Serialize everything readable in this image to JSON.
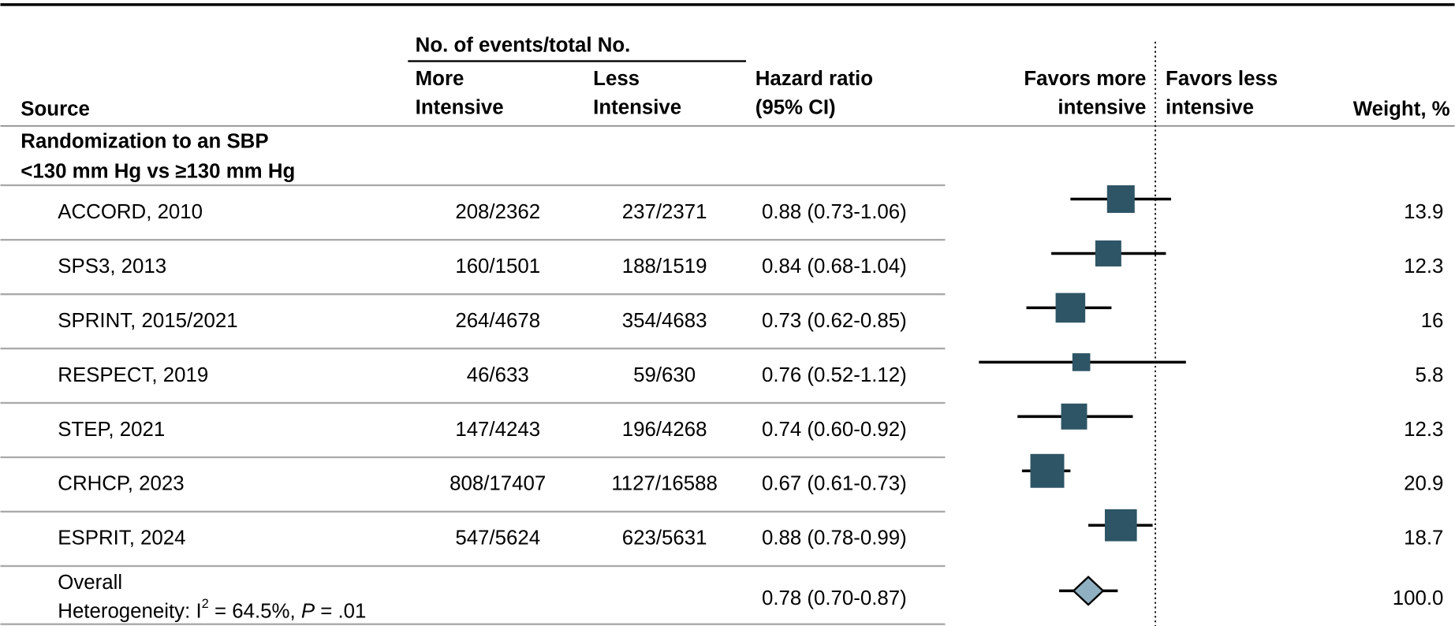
{
  "chart_data": {
    "type": "forest",
    "xscale": "log",
    "xlim": [
      0.5,
      1.2
    ],
    "reference": 1,
    "box_color": "#2e5566",
    "diamond_color": "#8fb0c0",
    "columns": {
      "source": "Source",
      "events_header": "No. of events/total No.",
      "more": [
        "More",
        "Intensive"
      ],
      "less": [
        "Less",
        "Intensive"
      ],
      "hr": [
        "Hazard ratio",
        "(95% CI)"
      ],
      "favors_more": [
        "Favors more",
        "intensive"
      ],
      "favors_less": [
        "Favors less",
        "intensive"
      ],
      "weight": "Weight, %"
    },
    "group": [
      "Randomization to an SBP",
      "<130 mm Hg vs ≥130 mm Hg"
    ],
    "studies": [
      {
        "name": "ACCORD, 2010",
        "more": "208/2362",
        "less": "237/2371",
        "hr": 0.88,
        "lo": 0.73,
        "hi": 1.06,
        "hr_label": "0.88 (0.73-1.06)",
        "weight": 13.9
      },
      {
        "name": "SPS3, 2013",
        "more": "160/1501",
        "less": "188/1519",
        "hr": 0.84,
        "lo": 0.68,
        "hi": 1.04,
        "hr_label": "0.84 (0.68-1.04)",
        "weight": 12.3
      },
      {
        "name": "SPRINT, 2015/2021",
        "more": "264/4678",
        "less": "354/4683",
        "hr": 0.73,
        "lo": 0.62,
        "hi": 0.85,
        "hr_label": "0.73 (0.62-0.85)",
        "weight": 16
      },
      {
        "name": "RESPECT, 2019",
        "more": "46/633",
        "less": "59/630",
        "hr": 0.76,
        "lo": 0.52,
        "hi": 1.12,
        "hr_label": "0.76 (0.52-1.12)",
        "weight": 5.8
      },
      {
        "name": "STEP, 2021",
        "more": "147/4243",
        "less": "196/4268",
        "hr": 0.74,
        "lo": 0.6,
        "hi": 0.92,
        "hr_label": "0.74 (0.60-0.92)",
        "weight": 12.3
      },
      {
        "name": "CRHCP, 2023",
        "more": "808/17407",
        "less": "1127/16588",
        "hr": 0.67,
        "lo": 0.61,
        "hi": 0.73,
        "hr_label": "0.67 (0.61-0.73)",
        "weight": 20.9
      },
      {
        "name": "ESPRIT, 2024",
        "more": "547/5624",
        "less": "623/5631",
        "hr": 0.88,
        "lo": 0.78,
        "hi": 0.99,
        "hr_label": "0.88 (0.78-0.99)",
        "weight": 18.7
      }
    ],
    "overall": {
      "name": "Overall",
      "heterogeneity": [
        "Heterogeneity: I",
        "2",
        " = 64.5%, ",
        "P",
        " = .01"
      ],
      "hr": 0.78,
      "lo": 0.7,
      "hi": 0.87,
      "hr_label": "0.78 (0.70-0.87)",
      "weight": "100.0"
    }
  }
}
